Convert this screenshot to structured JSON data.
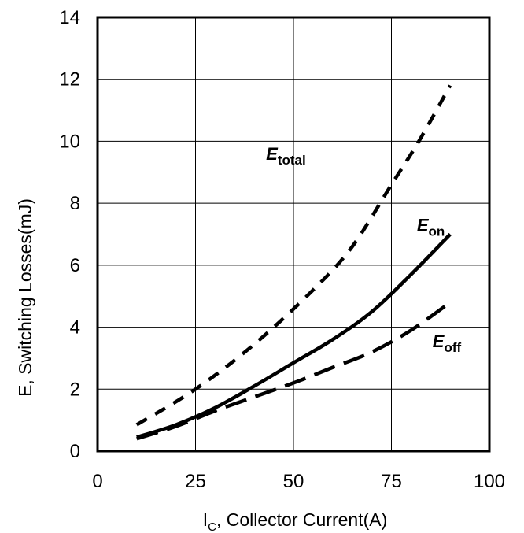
{
  "chart_data": {
    "type": "line",
    "xlabel": "I",
    "xlabel_sub": "C",
    "xlabel_rest": ", Collector Current(A)",
    "ylabel": "E, Switching Losses(mJ)",
    "xlim": [
      0,
      100
    ],
    "ylim": [
      0,
      14
    ],
    "xticks": [
      0,
      25,
      50,
      75,
      100
    ],
    "yticks": [
      0,
      2,
      4,
      6,
      8,
      10,
      12,
      14
    ],
    "grid": true,
    "series": [
      {
        "name": "E",
        "sub": "total",
        "style": "short-dash",
        "x": [
          10,
          25,
          40,
          55,
          65,
          75,
          82,
          90
        ],
        "y": [
          0.85,
          2.0,
          3.45,
          5.2,
          6.6,
          8.6,
          10.0,
          11.8
        ],
        "label_at": [
          43,
          9.4
        ]
      },
      {
        "name": "E",
        "sub": "on",
        "style": "solid",
        "x": [
          10,
          20,
          30,
          40,
          50,
          60,
          70,
          80,
          90
        ],
        "y": [
          0.45,
          0.85,
          1.4,
          2.1,
          2.85,
          3.6,
          4.5,
          5.7,
          7.0
        ],
        "label_at": [
          81.5,
          7.1
        ]
      },
      {
        "name": "E",
        "sub": "off",
        "style": "long-dash",
        "x": [
          10,
          20,
          30,
          40,
          50,
          60,
          70,
          80,
          90
        ],
        "y": [
          0.4,
          0.8,
          1.3,
          1.75,
          2.2,
          2.7,
          3.2,
          3.9,
          4.8
        ],
        "label_at": [
          85.5,
          3.35
        ]
      }
    ]
  }
}
